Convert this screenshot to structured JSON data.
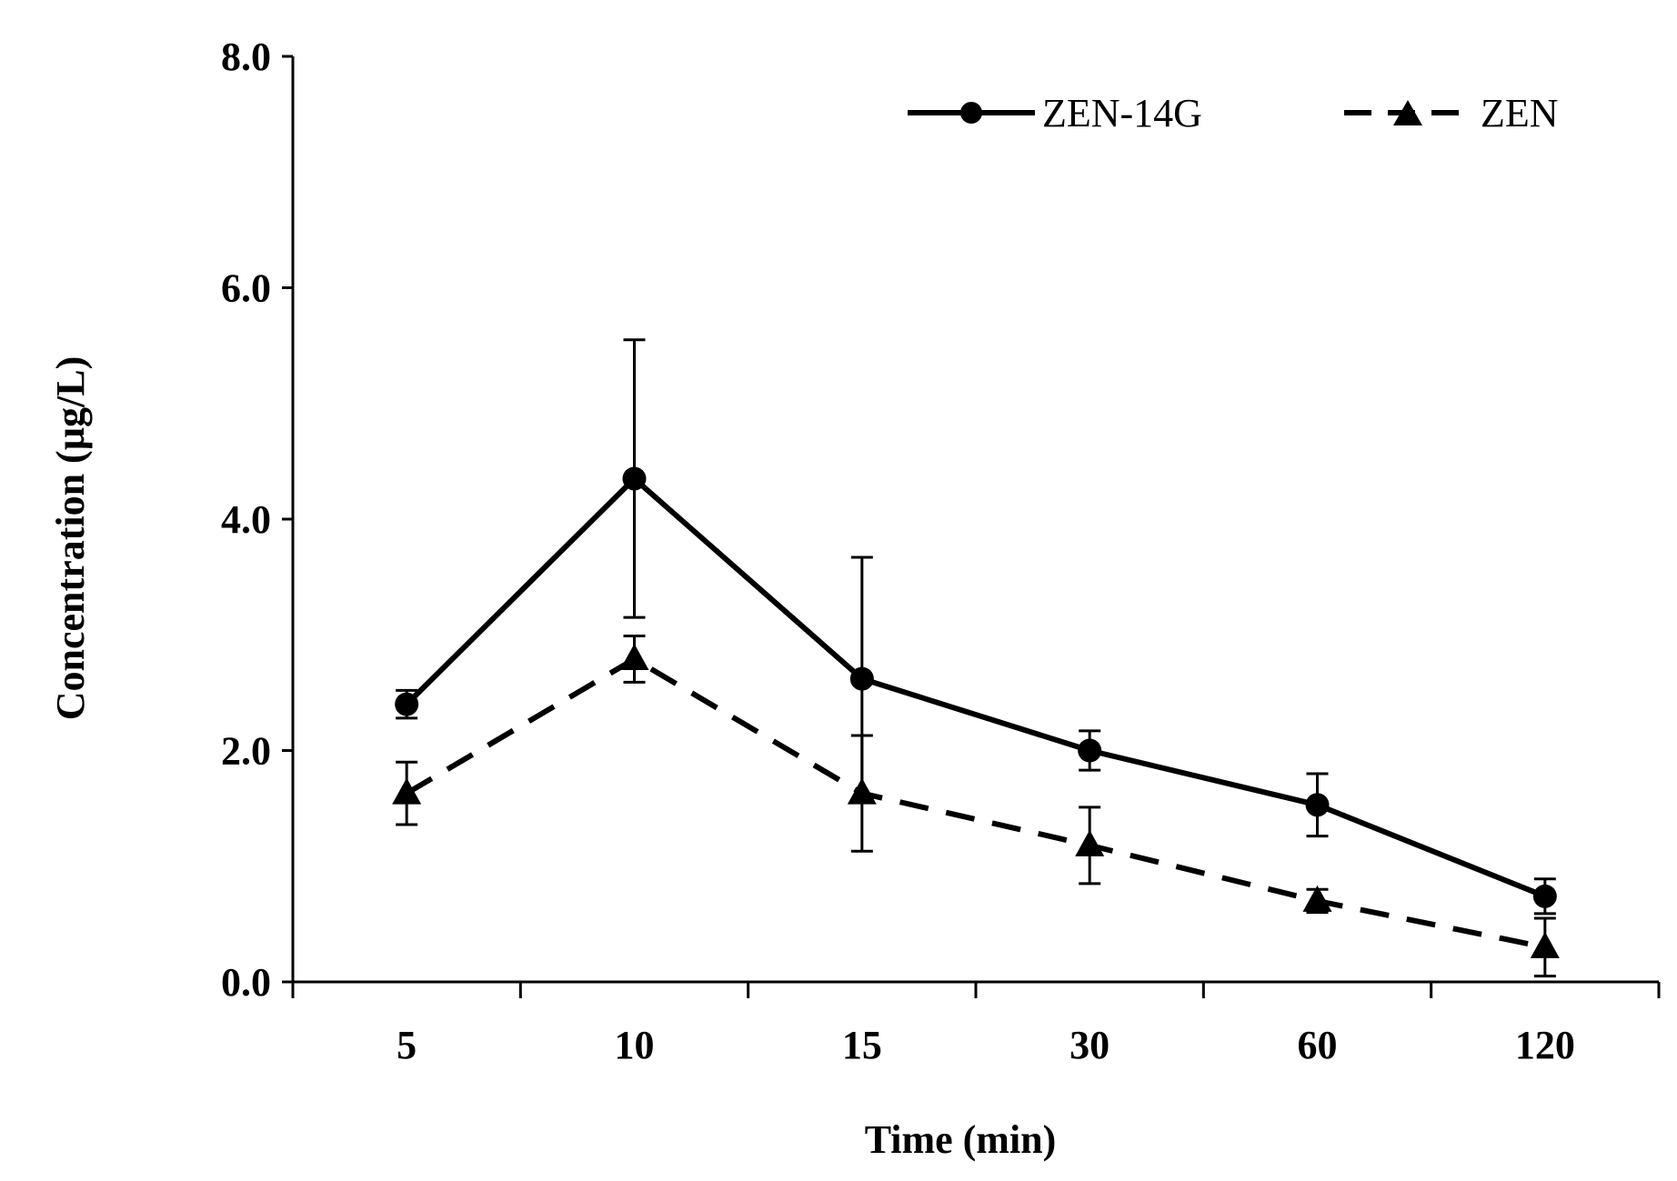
{
  "chart_data": {
    "type": "line",
    "title": "",
    "xlabel": "Time (min)",
    "ylabel": "Concentration (µg/L)",
    "categories": [
      "5",
      "10",
      "15",
      "30",
      "60",
      "120"
    ],
    "ylim": [
      0,
      8
    ],
    "yticks": [
      "0.0",
      "2.0",
      "4.0",
      "6.0",
      "8.0"
    ],
    "grid": false,
    "legend_position": "top-right",
    "series": [
      {
        "name": "ZEN-14G",
        "style": "solid",
        "marker": "circle",
        "values": [
          2.4,
          4.35,
          2.62,
          2.0,
          1.53,
          0.74
        ],
        "errors": [
          0.12,
          1.2,
          1.05,
          0.17,
          0.27,
          0.15
        ]
      },
      {
        "name": "ZEN",
        "style": "dashed",
        "marker": "triangle",
        "values": [
          1.63,
          2.79,
          1.63,
          1.18,
          0.7,
          0.3
        ],
        "errors": [
          0.27,
          0.2,
          0.5,
          0.33,
          0.1,
          0.25
        ]
      }
    ]
  }
}
